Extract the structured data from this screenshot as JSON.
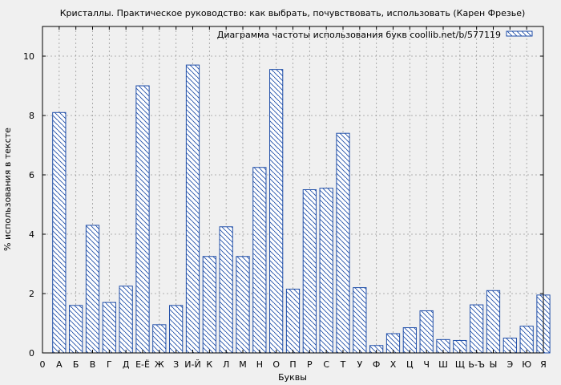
{
  "chart_data": {
    "type": "bar",
    "title": "Кристаллы. Практическое руководство: как выбрать, почувствовать, использовать (Карен Фрезье)",
    "xlabel": "Буквы",
    "ylabel": "% использования в тексте",
    "x_tick_labels": [
      "0",
      "А",
      "Б",
      "В",
      "Г",
      "Д",
      "Е-Ё",
      "Ж",
      "З",
      "И-Й",
      "К",
      "Л",
      "М",
      "Н",
      "О",
      "П",
      "Р",
      "С",
      "Т",
      "У",
      "Ф",
      "Х",
      "Ц",
      "Ч",
      "Ш",
      "Щ",
      "Ь-Ъ",
      "Ы",
      "Э",
      "Ю",
      "Я"
    ],
    "categories": [
      "А",
      "Б",
      "В",
      "Г",
      "Д",
      "Е-Ё",
      "Ж",
      "З",
      "И-Й",
      "К",
      "Л",
      "М",
      "Н",
      "О",
      "П",
      "Р",
      "С",
      "Т",
      "У",
      "Ф",
      "Х",
      "Ц",
      "Ч",
      "Ш",
      "Щ",
      "Ь-Ъ",
      "Ы",
      "Э",
      "Ю",
      "Я"
    ],
    "series": [
      {
        "name": "Диаграмма частоты использования букв coollib.net/b/577119",
        "values": [
          8.1,
          1.6,
          4.3,
          1.7,
          2.25,
          9.0,
          0.95,
          1.6,
          9.7,
          3.25,
          4.25,
          3.25,
          6.25,
          9.55,
          2.15,
          5.5,
          5.55,
          7.4,
          2.2,
          0.25,
          0.65,
          0.85,
          1.42,
          0.45,
          0.42,
          1.62,
          2.1,
          0.5,
          0.9,
          1.95
        ]
      }
    ],
    "y_ticks": [
      0,
      2,
      4,
      6,
      8,
      10
    ],
    "ylim": [
      0,
      11
    ],
    "grid": true,
    "legend_position": "top-right",
    "colors": {
      "bar_stroke": "#1f4ea8",
      "bar_hatch": "#1f4ea8",
      "bar_fill": "#ffffff",
      "grid": "#999999",
      "background": "#f0f0f0"
    }
  }
}
